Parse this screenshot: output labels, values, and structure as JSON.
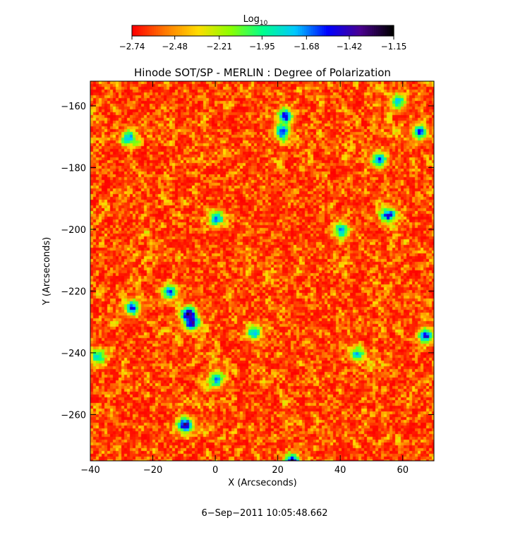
{
  "chart_data": {
    "type": "heatmap",
    "title": "Hinode SOT/SP - MERLIN : Degree of Polarization",
    "xlabel": "X (Arcseconds)",
    "ylabel": "Y (Arcseconds)",
    "xlim": [
      -40,
      70
    ],
    "ylim": [
      -275,
      -152
    ],
    "x_ticks": [
      -40,
      -20,
      0,
      20,
      40,
      60
    ],
    "x_tick_labels": [
      "−40",
      "−20",
      "0",
      "20",
      "40",
      "60"
    ],
    "y_ticks": [
      -160,
      -180,
      -200,
      -220,
      -240,
      -260
    ],
    "y_tick_labels": [
      "−160",
      "−180",
      "−200",
      "−220",
      "−240",
      "−260"
    ],
    "colorbar": {
      "label_main": "Log",
      "label_sub": "10",
      "ticks": [
        -2.74,
        -2.48,
        -2.21,
        -1.95,
        -1.68,
        -1.42,
        -1.15
      ],
      "tick_labels": [
        "−2.74",
        "−2.48",
        "−2.21",
        "−1.95",
        "−1.68",
        "−1.42",
        "−1.15"
      ],
      "range": [
        -2.74,
        -1.15
      ],
      "colormap": [
        "#ff0000",
        "#ff7a00",
        "#ffdc00",
        "#8cff00",
        "#00ff8c",
        "#00c8ff",
        "#0000ff",
        "#4a0090",
        "#000000"
      ]
    },
    "features": [
      {
        "x": -9,
        "y": -227,
        "value": -1.3
      },
      {
        "x": -8,
        "y": -230,
        "value": -1.35
      },
      {
        "x": -10,
        "y": -263,
        "value": -1.3
      },
      {
        "x": 24,
        "y": -275,
        "value": -1.2
      },
      {
        "x": 22,
        "y": -163,
        "value": -1.45
      },
      {
        "x": 21,
        "y": -168,
        "value": -1.5
      },
      {
        "x": 55,
        "y": -195,
        "value": -1.5
      },
      {
        "x": 67,
        "y": -234,
        "value": -1.5
      },
      {
        "x": -27,
        "y": -225,
        "value": -1.55
      },
      {
        "x": -15,
        "y": -220,
        "value": -1.6
      },
      {
        "x": 0,
        "y": -196,
        "value": -1.7
      },
      {
        "x": -28,
        "y": -170,
        "value": -1.7
      },
      {
        "x": 65,
        "y": -168,
        "value": -1.6
      },
      {
        "x": 52,
        "y": -177,
        "value": -1.6
      },
      {
        "x": 12,
        "y": -233,
        "value": -1.7
      },
      {
        "x": 0,
        "y": -248,
        "value": -1.7
      },
      {
        "x": 40,
        "y": -200,
        "value": -1.65
      },
      {
        "x": 58,
        "y": -158,
        "value": -1.8
      },
      {
        "x": -38,
        "y": -241,
        "value": -1.8
      },
      {
        "x": 45,
        "y": -240,
        "value": -1.8
      }
    ]
  },
  "timestamp": "6−Sep−2011 10:05:48.662"
}
